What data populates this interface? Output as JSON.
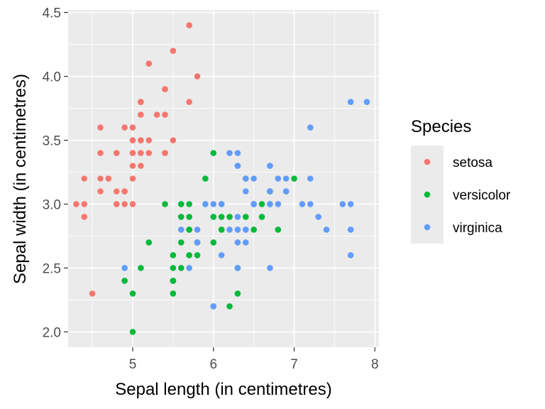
{
  "chart_data": {
    "type": "scatter",
    "xlabel": "Sepal length (in centimetres)",
    "ylabel": "Sepal width (in centimetres)",
    "xlim": [
      4.2,
      8.05
    ],
    "ylim": [
      1.88,
      4.52
    ],
    "x_ticks": [
      "5",
      "6",
      "7",
      "8"
    ],
    "y_ticks": [
      "2.0",
      "2.5",
      "3.0",
      "3.5",
      "4.0",
      "4.5"
    ],
    "grid": true,
    "legend": {
      "title": "Species",
      "position": "right"
    },
    "series": [
      {
        "name": "setosa",
        "color": "#F8766D",
        "points": [
          [
            5.1,
            3.5
          ],
          [
            4.9,
            3.0
          ],
          [
            4.7,
            3.2
          ],
          [
            4.6,
            3.1
          ],
          [
            5.0,
            3.6
          ],
          [
            5.4,
            3.9
          ],
          [
            4.6,
            3.4
          ],
          [
            5.0,
            3.4
          ],
          [
            4.4,
            2.9
          ],
          [
            4.9,
            3.1
          ],
          [
            5.4,
            3.7
          ],
          [
            4.8,
            3.4
          ],
          [
            4.8,
            3.0
          ],
          [
            4.3,
            3.0
          ],
          [
            5.8,
            4.0
          ],
          [
            5.7,
            4.4
          ],
          [
            5.4,
            3.9
          ],
          [
            5.1,
            3.5
          ],
          [
            5.7,
            3.8
          ],
          [
            5.1,
            3.8
          ],
          [
            5.4,
            3.4
          ],
          [
            5.1,
            3.7
          ],
          [
            4.6,
            3.6
          ],
          [
            5.1,
            3.3
          ],
          [
            4.8,
            3.4
          ],
          [
            5.0,
            3.0
          ],
          [
            5.0,
            3.4
          ],
          [
            5.2,
            3.5
          ],
          [
            5.2,
            3.4
          ],
          [
            4.7,
            3.2
          ],
          [
            4.8,
            3.1
          ],
          [
            5.4,
            3.4
          ],
          [
            5.2,
            4.1
          ],
          [
            5.5,
            4.2
          ],
          [
            4.9,
            3.1
          ],
          [
            5.0,
            3.2
          ],
          [
            5.5,
            3.5
          ],
          [
            4.9,
            3.6
          ],
          [
            4.4,
            3.0
          ],
          [
            5.1,
            3.4
          ],
          [
            5.0,
            3.5
          ],
          [
            4.5,
            2.3
          ],
          [
            4.4,
            3.2
          ],
          [
            5.0,
            3.5
          ],
          [
            5.1,
            3.8
          ],
          [
            4.8,
            3.0
          ],
          [
            5.1,
            3.8
          ],
          [
            4.6,
            3.2
          ],
          [
            5.3,
            3.7
          ],
          [
            5.0,
            3.3
          ]
        ]
      },
      {
        "name": "versicolor",
        "color": "#00BA38",
        "points": [
          [
            7.0,
            3.2
          ],
          [
            6.4,
            3.2
          ],
          [
            6.9,
            3.1
          ],
          [
            5.5,
            2.3
          ],
          [
            6.5,
            2.8
          ],
          [
            5.7,
            2.8
          ],
          [
            6.3,
            3.3
          ],
          [
            4.9,
            2.4
          ],
          [
            6.6,
            2.9
          ],
          [
            5.2,
            2.7
          ],
          [
            5.0,
            2.0
          ],
          [
            5.9,
            3.0
          ],
          [
            6.0,
            2.2
          ],
          [
            6.1,
            2.9
          ],
          [
            5.6,
            2.9
          ],
          [
            6.7,
            3.1
          ],
          [
            5.6,
            3.0
          ],
          [
            5.8,
            2.7
          ],
          [
            6.2,
            2.2
          ],
          [
            5.6,
            2.5
          ],
          [
            5.9,
            3.2
          ],
          [
            6.1,
            2.8
          ],
          [
            6.3,
            2.5
          ],
          [
            6.1,
            2.8
          ],
          [
            6.4,
            2.9
          ],
          [
            6.6,
            3.0
          ],
          [
            6.8,
            2.8
          ],
          [
            6.7,
            3.0
          ],
          [
            6.0,
            2.9
          ],
          [
            5.7,
            2.6
          ],
          [
            5.5,
            2.4
          ],
          [
            5.5,
            2.4
          ],
          [
            5.8,
            2.7
          ],
          [
            6.0,
            2.7
          ],
          [
            5.4,
            3.0
          ],
          [
            6.0,
            3.4
          ],
          [
            6.7,
            3.1
          ],
          [
            6.3,
            2.3
          ],
          [
            5.6,
            3.0
          ],
          [
            5.5,
            2.5
          ],
          [
            5.5,
            2.6
          ],
          [
            6.1,
            3.0
          ],
          [
            5.8,
            2.6
          ],
          [
            5.0,
            2.3
          ],
          [
            5.6,
            2.7
          ],
          [
            5.7,
            3.0
          ],
          [
            5.7,
            2.9
          ],
          [
            6.2,
            2.9
          ],
          [
            5.1,
            2.5
          ],
          [
            5.7,
            2.8
          ]
        ]
      },
      {
        "name": "virginica",
        "color": "#619CFF",
        "points": [
          [
            6.3,
            3.3
          ],
          [
            5.8,
            2.7
          ],
          [
            7.1,
            3.0
          ],
          [
            6.3,
            2.9
          ],
          [
            6.5,
            3.0
          ],
          [
            7.6,
            3.0
          ],
          [
            4.9,
            2.5
          ],
          [
            7.3,
            2.9
          ],
          [
            6.7,
            2.5
          ],
          [
            7.2,
            3.6
          ],
          [
            6.5,
            3.2
          ],
          [
            6.4,
            2.7
          ],
          [
            6.8,
            3.0
          ],
          [
            5.7,
            2.5
          ],
          [
            5.8,
            2.8
          ],
          [
            6.4,
            3.2
          ],
          [
            6.5,
            3.0
          ],
          [
            7.7,
            3.8
          ],
          [
            7.7,
            2.6
          ],
          [
            6.0,
            2.2
          ],
          [
            6.9,
            3.2
          ],
          [
            5.6,
            2.8
          ],
          [
            7.7,
            2.8
          ],
          [
            6.3,
            2.7
          ],
          [
            6.7,
            3.3
          ],
          [
            7.2,
            3.2
          ],
          [
            6.2,
            2.8
          ],
          [
            6.1,
            3.0
          ],
          [
            6.4,
            2.8
          ],
          [
            7.2,
            3.0
          ],
          [
            7.4,
            2.8
          ],
          [
            7.9,
            3.8
          ],
          [
            6.4,
            2.8
          ],
          [
            6.3,
            2.8
          ],
          [
            6.1,
            2.6
          ],
          [
            7.7,
            3.0
          ],
          [
            6.3,
            3.4
          ],
          [
            6.4,
            3.1
          ],
          [
            6.0,
            3.0
          ],
          [
            6.9,
            3.1
          ],
          [
            6.7,
            3.1
          ],
          [
            6.9,
            3.1
          ],
          [
            5.8,
            2.7
          ],
          [
            6.8,
            3.2
          ],
          [
            6.7,
            3.3
          ],
          [
            6.7,
            3.0
          ],
          [
            6.3,
            2.5
          ],
          [
            6.5,
            3.0
          ],
          [
            6.2,
            3.4
          ],
          [
            5.9,
            3.0
          ]
        ]
      }
    ]
  }
}
